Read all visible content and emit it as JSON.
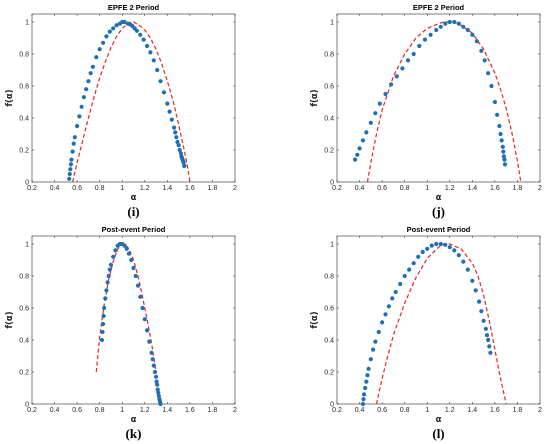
{
  "chart_data": [
    {
      "type": "scatter",
      "panel_label": "(i)",
      "title": "EPFE 2 Period",
      "xlabel": "α",
      "ylabel": "f(α)",
      "xlim": [
        0.2,
        2
      ],
      "ylim": [
        0,
        1.05
      ],
      "xticks": [
        "0.2",
        "0.4",
        "0.6",
        "0.8",
        "1",
        "1.2",
        "1.4",
        "1.6",
        "1.8",
        "2"
      ],
      "yticks": [
        "0",
        "0.2",
        "0.4",
        "0.6",
        "0.8",
        "1"
      ],
      "grid": false,
      "series": [
        {
          "kind": "points",
          "color": "#1f6fb4",
          "x": [
            0.53,
            0.535,
            0.54,
            0.545,
            0.55,
            0.56,
            0.57,
            0.58,
            0.6,
            0.62,
            0.64,
            0.66,
            0.68,
            0.7,
            0.72,
            0.74,
            0.77,
            0.8,
            0.83,
            0.86,
            0.89,
            0.92,
            0.95,
            0.98,
            1.0,
            1.02,
            1.05,
            1.07,
            1.09,
            1.11,
            1.13,
            1.16,
            1.19,
            1.22,
            1.25,
            1.28,
            1.31,
            1.34,
            1.37,
            1.4,
            1.42,
            1.44,
            1.46,
            1.47,
            1.48,
            1.49,
            1.5,
            1.51,
            1.52,
            1.525,
            1.53,
            1.535,
            1.54,
            1.545,
            1.55
          ],
          "y": [
            0.02,
            0.05,
            0.08,
            0.11,
            0.14,
            0.19,
            0.24,
            0.28,
            0.35,
            0.41,
            0.47,
            0.53,
            0.58,
            0.63,
            0.68,
            0.72,
            0.78,
            0.83,
            0.87,
            0.91,
            0.94,
            0.96,
            0.98,
            0.99,
            1.0,
            1.0,
            0.99,
            0.985,
            0.975,
            0.96,
            0.945,
            0.92,
            0.89,
            0.85,
            0.81,
            0.76,
            0.7,
            0.63,
            0.56,
            0.49,
            0.44,
            0.39,
            0.34,
            0.31,
            0.28,
            0.25,
            0.23,
            0.2,
            0.18,
            0.16,
            0.15,
            0.14,
            0.13,
            0.12,
            0.1
          ]
        },
        {
          "kind": "dashed-line",
          "color": "#e8231f",
          "x": [
            0.56,
            0.6,
            0.65,
            0.7,
            0.75,
            0.8,
            0.85,
            0.9,
            0.95,
            1.0,
            1.05,
            1.08,
            1.1,
            1.15,
            1.2,
            1.25,
            1.3,
            1.35,
            1.4,
            1.45,
            1.5,
            1.55,
            1.58,
            1.6
          ],
          "y": [
            0.0,
            0.12,
            0.26,
            0.4,
            0.53,
            0.65,
            0.75,
            0.84,
            0.91,
            0.96,
            0.99,
            1.0,
            1.0,
            0.98,
            0.95,
            0.9,
            0.83,
            0.74,
            0.63,
            0.51,
            0.36,
            0.2,
            0.09,
            0.0
          ]
        }
      ]
    },
    {
      "type": "scatter",
      "panel_label": "(j)",
      "title": "EPFE 2 Period",
      "xlabel": "α",
      "ylabel": "f(α)",
      "xlim": [
        0.2,
        2
      ],
      "ylim": [
        0,
        1.05
      ],
      "xticks": [
        "0.2",
        "0.4",
        "0.6",
        "0.8",
        "1",
        "1.2",
        "1.4",
        "1.6",
        "1.8",
        "2"
      ],
      "yticks": [
        "0",
        "0.2",
        "0.4",
        "0.6",
        "0.8",
        "1"
      ],
      "grid": false,
      "series": [
        {
          "kind": "points",
          "color": "#1f6fb4",
          "x": [
            0.36,
            0.38,
            0.4,
            0.43,
            0.46,
            0.5,
            0.54,
            0.58,
            0.63,
            0.68,
            0.73,
            0.78,
            0.83,
            0.88,
            0.93,
            0.98,
            1.03,
            1.08,
            1.12,
            1.16,
            1.2,
            1.24,
            1.28,
            1.32,
            1.36,
            1.4,
            1.44,
            1.48,
            1.51,
            1.54,
            1.57,
            1.6,
            1.62,
            1.64,
            1.65,
            1.66,
            1.67,
            1.675,
            1.68,
            1.685,
            1.69
          ],
          "y": [
            0.14,
            0.17,
            0.21,
            0.26,
            0.31,
            0.37,
            0.43,
            0.49,
            0.55,
            0.61,
            0.66,
            0.71,
            0.76,
            0.8,
            0.85,
            0.89,
            0.92,
            0.95,
            0.97,
            0.99,
            1.0,
            1.0,
            0.99,
            0.97,
            0.95,
            0.92,
            0.88,
            0.82,
            0.76,
            0.68,
            0.6,
            0.5,
            0.42,
            0.35,
            0.3,
            0.26,
            0.22,
            0.19,
            0.16,
            0.14,
            0.11
          ]
        },
        {
          "kind": "dashed-line",
          "color": "#e8231f",
          "x": [
            0.47,
            0.5,
            0.55,
            0.6,
            0.7,
            0.8,
            0.9,
            1.0,
            1.1,
            1.15,
            1.2,
            1.25,
            1.3,
            1.4,
            1.5,
            1.6,
            1.65,
            1.7,
            1.75,
            1.8,
            1.83
          ],
          "y": [
            0.0,
            0.12,
            0.3,
            0.45,
            0.66,
            0.8,
            0.9,
            0.96,
            0.99,
            1.0,
            1.0,
            0.995,
            0.98,
            0.93,
            0.83,
            0.68,
            0.58,
            0.46,
            0.31,
            0.13,
            0.0
          ]
        }
      ]
    },
    {
      "type": "scatter",
      "panel_label": "(k)",
      "title": "Post-event Period",
      "xlabel": "α",
      "ylabel": "f(α)",
      "xlim": [
        0.2,
        2
      ],
      "ylim": [
        0,
        1.05
      ],
      "xticks": [
        "0.2",
        "0.4",
        "0.6",
        "0.8",
        "1",
        "1.2",
        "1.4",
        "1.6",
        "1.8",
        "2"
      ],
      "yticks": [
        "0",
        "0.2",
        "0.4",
        "0.6",
        "0.8",
        "1"
      ],
      "grid": false,
      "series": [
        {
          "kind": "points",
          "color": "#1f6fb4",
          "x": [
            0.82,
            0.825,
            0.83,
            0.835,
            0.84,
            0.85,
            0.86,
            0.87,
            0.88,
            0.89,
            0.9,
            0.92,
            0.94,
            0.96,
            0.98,
            1.0,
            1.02,
            1.04,
            1.06,
            1.08,
            1.1,
            1.12,
            1.14,
            1.16,
            1.18,
            1.2,
            1.22,
            1.24,
            1.26,
            1.27,
            1.28,
            1.29,
            1.3,
            1.305,
            1.31,
            1.315,
            1.32,
            1.325,
            1.33,
            1.335,
            1.34
          ],
          "y": [
            0.4,
            0.45,
            0.5,
            0.55,
            0.6,
            0.66,
            0.71,
            0.76,
            0.8,
            0.84,
            0.87,
            0.92,
            0.96,
            0.99,
            1.0,
            1.0,
            0.99,
            0.97,
            0.94,
            0.9,
            0.85,
            0.8,
            0.74,
            0.67,
            0.6,
            0.53,
            0.46,
            0.39,
            0.32,
            0.28,
            0.24,
            0.2,
            0.17,
            0.14,
            0.12,
            0.09,
            0.07,
            0.05,
            0.03,
            0.015,
            0.0
          ]
        },
        {
          "kind": "dashed-line",
          "color": "#e8231f",
          "x": [
            0.77,
            0.8,
            0.84,
            0.88,
            0.92,
            0.96,
            1.0,
            1.02,
            1.06,
            1.1,
            1.14,
            1.18,
            1.22,
            1.26,
            1.28,
            1.3
          ],
          "y": [
            0.2,
            0.42,
            0.62,
            0.78,
            0.89,
            0.97,
            1.0,
            1.0,
            0.97,
            0.9,
            0.8,
            0.67,
            0.53,
            0.38,
            0.29,
            0.2
          ]
        }
      ]
    },
    {
      "type": "scatter",
      "panel_label": "(l)",
      "title": "Post-event Period",
      "xlabel": "α",
      "ylabel": "f(α)",
      "xlim": [
        0.2,
        2
      ],
      "ylim": [
        0,
        1.05
      ],
      "xticks": [
        "0.2",
        "0.4",
        "0.6",
        "0.8",
        "1",
        "1.2",
        "1.4",
        "1.6",
        "1.8",
        "2"
      ],
      "yticks": [
        "0",
        "0.2",
        "0.4",
        "0.6",
        "0.8",
        "1"
      ],
      "grid": false,
      "series": [
        {
          "kind": "points",
          "color": "#1f6fb4",
          "x": [
            0.43,
            0.435,
            0.44,
            0.45,
            0.46,
            0.47,
            0.48,
            0.5,
            0.52,
            0.54,
            0.57,
            0.6,
            0.63,
            0.66,
            0.69,
            0.72,
            0.76,
            0.8,
            0.84,
            0.88,
            0.92,
            0.96,
            1.0,
            1.04,
            1.08,
            1.12,
            1.16,
            1.2,
            1.24,
            1.28,
            1.32,
            1.36,
            1.4,
            1.43,
            1.46,
            1.48,
            1.5,
            1.52,
            1.53,
            1.54,
            1.55,
            1.56
          ],
          "y": [
            0.0,
            0.03,
            0.06,
            0.1,
            0.14,
            0.18,
            0.22,
            0.28,
            0.34,
            0.39,
            0.45,
            0.51,
            0.56,
            0.61,
            0.66,
            0.7,
            0.75,
            0.8,
            0.84,
            0.88,
            0.92,
            0.95,
            0.97,
            0.99,
            1.0,
            1.0,
            0.995,
            0.98,
            0.96,
            0.93,
            0.89,
            0.84,
            0.77,
            0.71,
            0.64,
            0.58,
            0.52,
            0.47,
            0.43,
            0.4,
            0.36,
            0.32
          ]
        },
        {
          "kind": "dashed-line",
          "color": "#e8231f",
          "x": [
            0.55,
            0.6,
            0.65,
            0.7,
            0.8,
            0.9,
            1.0,
            1.1,
            1.15,
            1.2,
            1.3,
            1.4,
            1.45,
            1.5,
            1.55,
            1.6,
            1.65,
            1.7
          ],
          "y": [
            0.0,
            0.16,
            0.3,
            0.43,
            0.63,
            0.79,
            0.91,
            0.98,
            1.0,
            1.0,
            0.97,
            0.88,
            0.8,
            0.68,
            0.52,
            0.34,
            0.16,
            0.0
          ]
        }
      ]
    }
  ]
}
